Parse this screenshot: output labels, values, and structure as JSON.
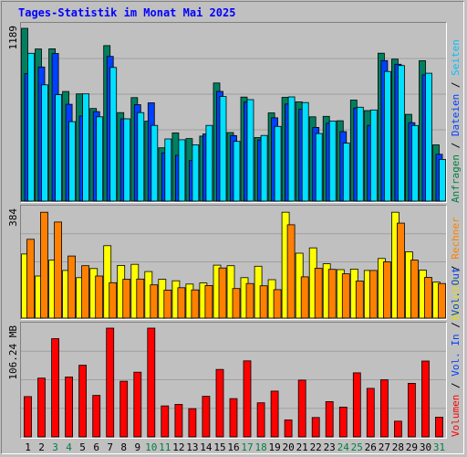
{
  "title": "Tages-Statistik im Monat Mai 2025",
  "legend": {
    "top": [
      {
        "text": "Anfragen",
        "color": "#008040"
      },
      {
        "text": "Dateien",
        "color": "#0040ff"
      },
      {
        "text": "Seiten",
        "color": "#00c0ff"
      }
    ],
    "middle": [
      {
        "text": "Besuche",
        "color": "#e0e000"
      },
      {
        "text": "Rechner",
        "color": "#ff8000"
      }
    ],
    "bottom": [
      {
        "text": "Volumen",
        "color": "#ff0000"
      },
      {
        "text": "Vol. In",
        "color": "#0040ff"
      },
      {
        "text": "Vol. Out",
        "color": "#0040ff"
      }
    ],
    "separator": " / "
  },
  "chart_data": {
    "type": "bar",
    "categories": [
      "1",
      "2",
      "3",
      "4",
      "5",
      "6",
      "7",
      "8",
      "9",
      "10",
      "11",
      "12",
      "13",
      "14",
      "15",
      "16",
      "17",
      "18",
      "19",
      "20",
      "21",
      "22",
      "23",
      "24",
      "25",
      "26",
      "27",
      "28",
      "29",
      "30",
      "31"
    ],
    "weekend_days": [
      "3",
      "4",
      "10",
      "11",
      "17",
      "18",
      "24",
      "25",
      "31"
    ],
    "panels": [
      {
        "name": "requests",
        "ymax": 1189,
        "ylabel": "1189",
        "series": [
          {
            "name": "Anfragen",
            "color": "#008060",
            "values": [
              1189,
              1047,
              1048,
              754,
              738,
              637,
              1070,
              609,
              712,
              550,
              367,
              469,
              430,
              447,
              813,
              472,
              716,
              437,
              607,
              714,
              683,
              580,
              583,
              553,
              695,
              623,
              1018,
              977,
              597,
              966,
              387
            ]
          },
          {
            "name": "Dateien",
            "color": "#0040ff",
            "values": [
              877,
              923,
              1016,
              666,
              585,
              616,
              996,
              566,
              664,
              676,
              332,
              315,
              279,
              462,
              755,
              451,
              682,
              421,
              573,
              668,
              632,
              507,
              536,
              478,
              641,
              521,
              967,
              942,
              540,
              869,
              322
            ]
          },
          {
            "name": "Seiten",
            "color": "#00e0ff",
            "values": [
              1017,
              800,
              732,
              547,
              738,
              580,
              920,
              566,
              609,
              521,
              428,
              422,
              387,
              521,
              720,
              411,
              698,
              452,
              514,
              717,
              678,
              465,
              551,
              399,
              646,
              627,
              892,
              933,
              520,
              880,
              287
            ]
          }
        ]
      },
      {
        "name": "visits",
        "ymax": 384,
        "ylabel": "384",
        "series": [
          {
            "name": "Besuche",
            "color": "#ffff00",
            "values": [
              230,
              151,
              208,
              171,
              145,
              178,
              260,
              189,
              193,
              167,
              139,
              134,
              122,
              126,
              190,
              188,
              145,
              186,
              138,
              380,
              233,
              252,
              195,
              174,
              176,
              171,
              214,
              380,
              238,
              172,
              129
            ]
          },
          {
            "name": "Rechner",
            "color": "#ff8000",
            "values": [
              283,
              380,
              345,
              223,
              188,
              151,
              127,
              139,
              140,
              119,
              100,
              109,
              101,
              117,
              180,
              106,
              124,
              116,
              102,
              335,
              148,
              179,
              175,
              159,
              133,
              171,
              202,
              341,
              208,
              146,
              124
            ]
          }
        ]
      },
      {
        "name": "volume",
        "ymax": 106.24,
        "ylabel": "106.24 MB",
        "series": [
          {
            "name": "Volumen",
            "color": "#ff0000",
            "values": [
              39.4,
              57.4,
              96.0,
              58.5,
              70.0,
              40.5,
              106.2,
              54.4,
              63.2,
              106.2,
              30.3,
              31.8,
              27.6,
              39.6,
              65.9,
              37.4,
              74.3,
              33.3,
              44.7,
              16.6,
              55.4,
              18.9,
              34.5,
              29.1,
              62.6,
              47.4,
              55.8,
              15.4,
              52.3,
              74.1,
              19.3
            ]
          }
        ]
      }
    ]
  }
}
